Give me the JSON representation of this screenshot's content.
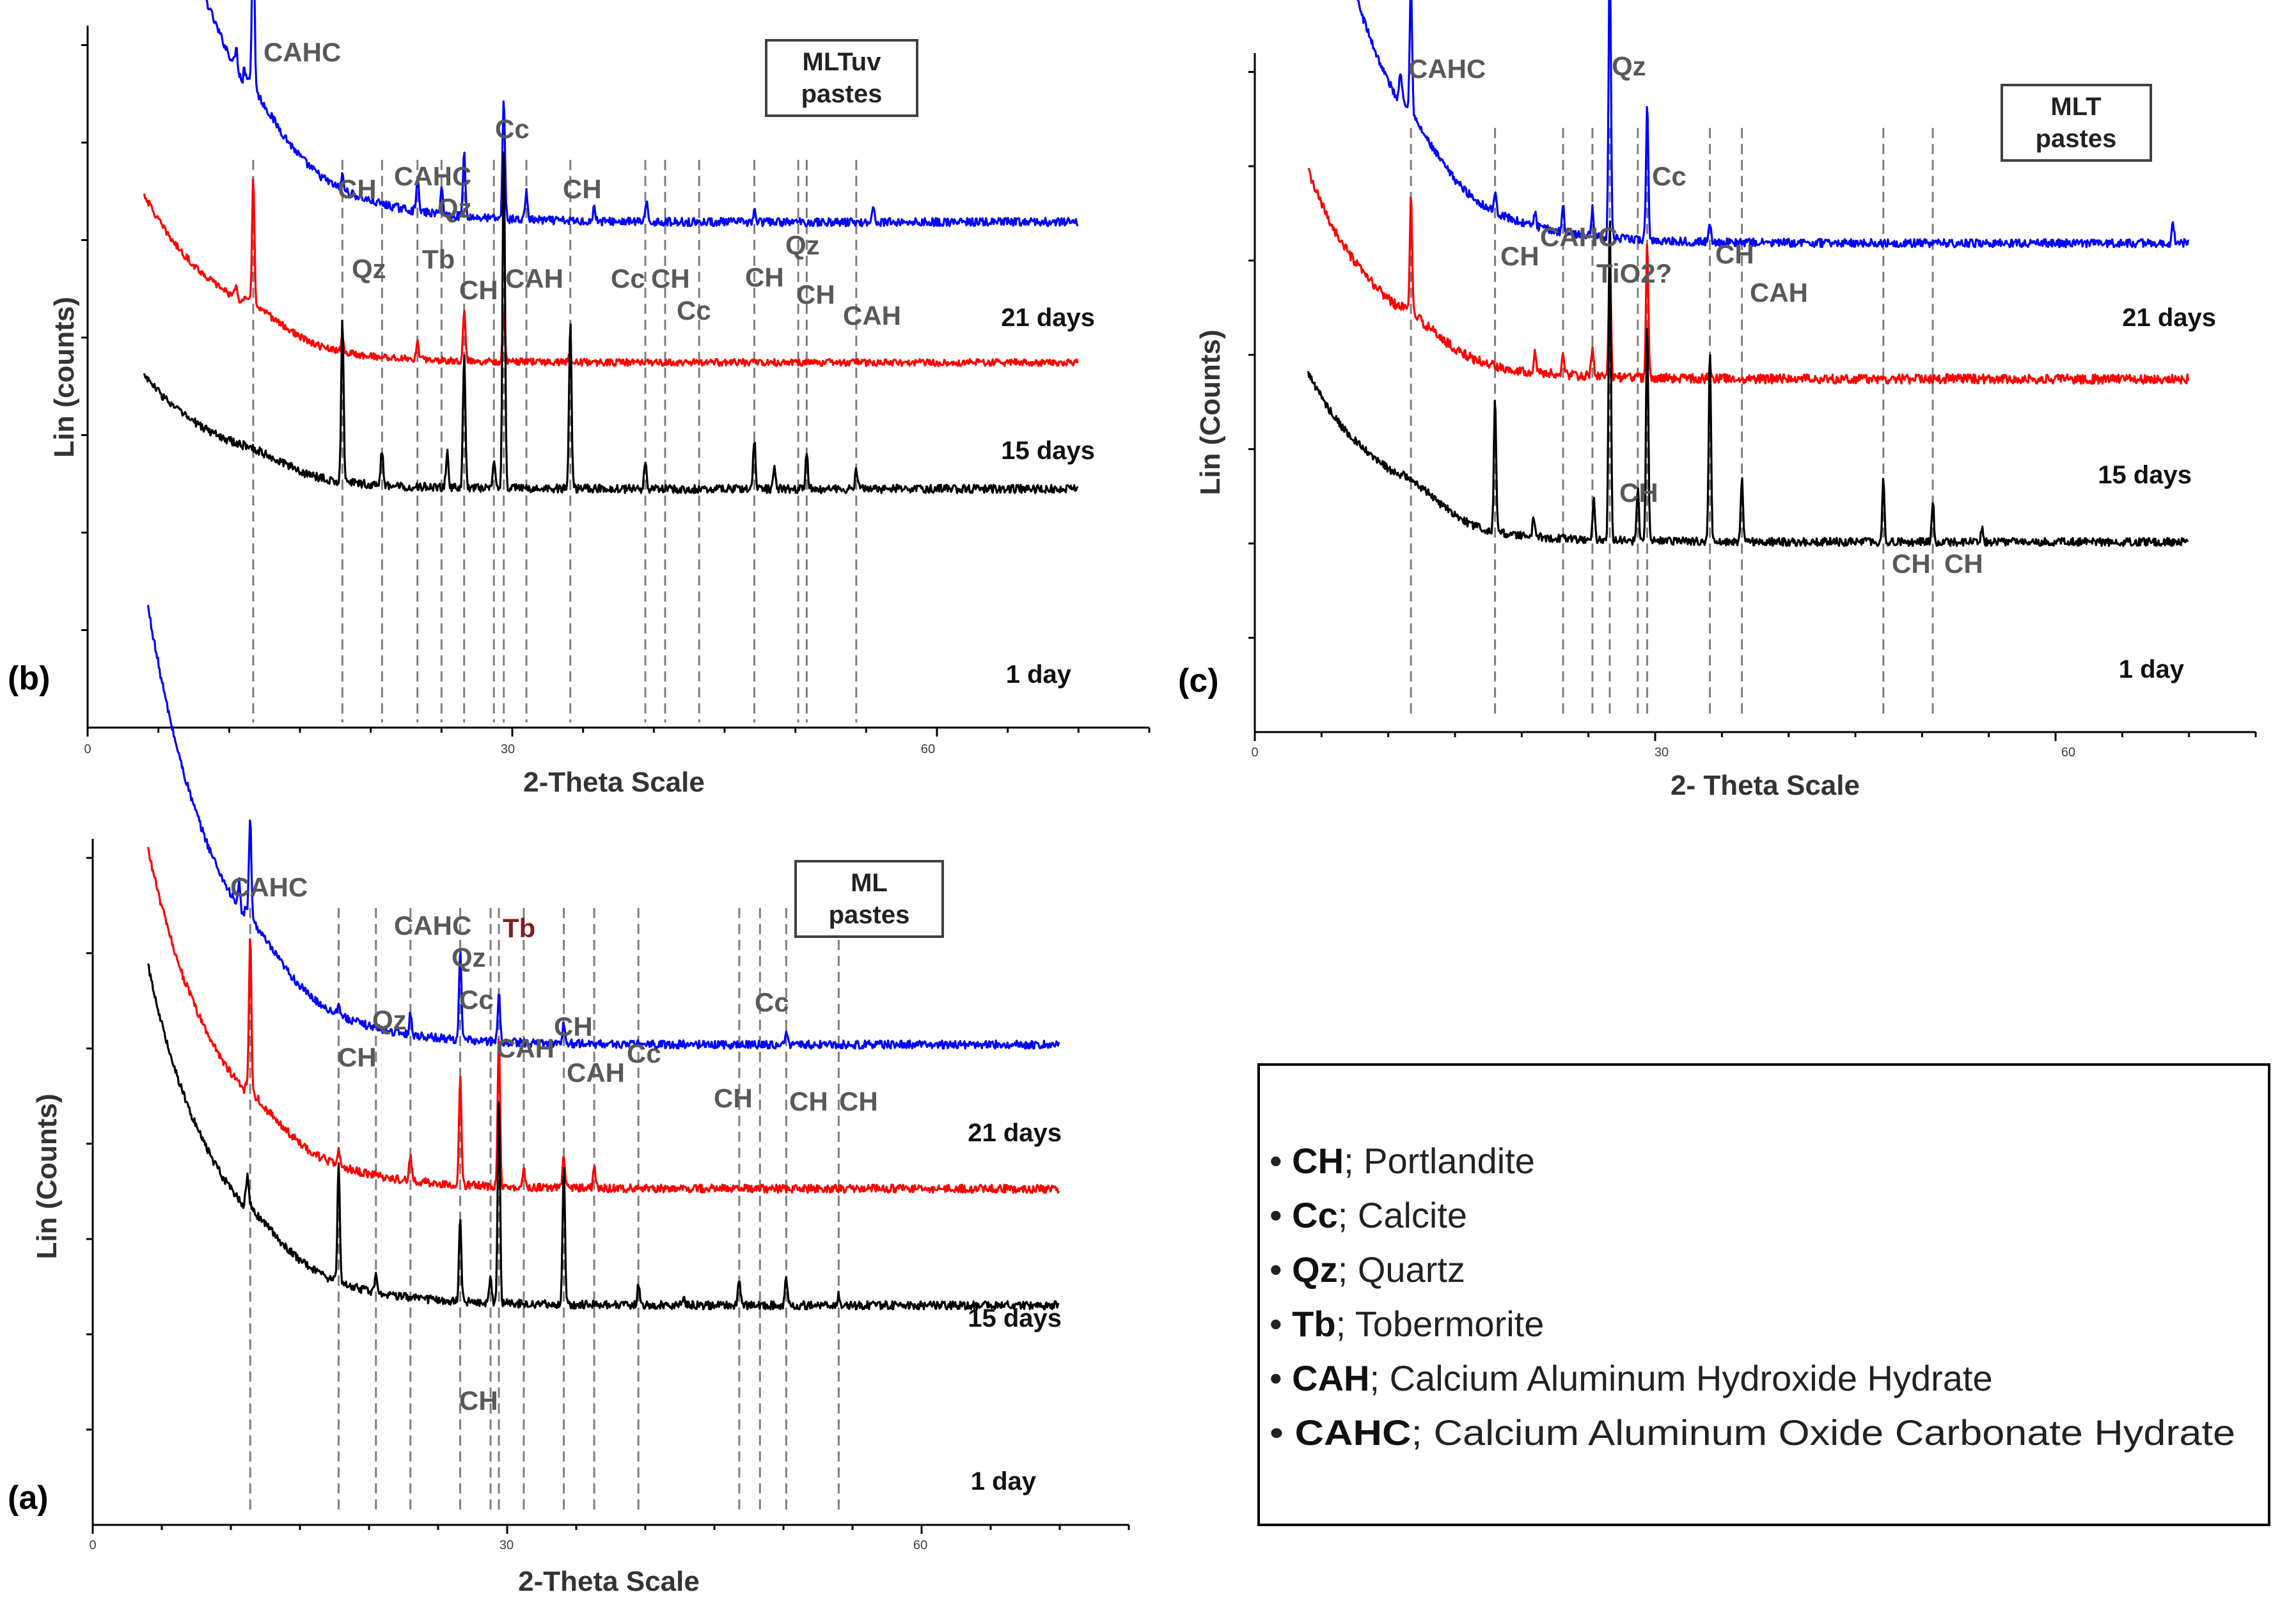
{
  "chart_data": [
    {
      "id": "b",
      "panel_label": "(b)",
      "type": "line",
      "title_box": [
        "MLTuv",
        "pastes"
      ],
      "xlabel": "2-Theta Scale",
      "ylabel": "Lin (counts)",
      "xlim": [
        0,
        75
      ],
      "xticks": [
        "0",
        "30",
        "60"
      ],
      "series": [
        {
          "name": "21 days",
          "color": "#0000ff",
          "start": 4,
          "end": 70,
          "base": 0.72,
          "hump": 0.04,
          "tail": 0.1,
          "noise": 0.006,
          "peaks": [
            [
              10.5,
              0.03
            ],
            [
              11.7,
              0.26
            ],
            [
              18,
              0.02
            ],
            [
              23.3,
              0.05
            ],
            [
              25,
              0.04
            ],
            [
              26.6,
              0.09
            ],
            [
              29.4,
              0.17
            ],
            [
              31,
              0.04
            ],
            [
              35.8,
              0.02
            ],
            [
              39.5,
              0.025
            ],
            [
              47.1,
              0.015
            ],
            [
              55.5,
              0.02
            ]
          ]
        },
        {
          "name": "15 days",
          "color": "#ff0000",
          "start": 4,
          "end": 70,
          "base": 0.52,
          "hump": 0.04,
          "tail": 0.03,
          "noise": 0.005,
          "peaks": [
            [
              10.5,
              0.02
            ],
            [
              11.7,
              0.18
            ],
            [
              18,
              0.02
            ],
            [
              23.3,
              0.025
            ],
            [
              26.6,
              0.07
            ],
            [
              29.4,
              0.07
            ],
            [
              34,
              0.012
            ]
          ]
        },
        {
          "name": "1 day",
          "color": "#000000",
          "start": 4,
          "end": 70,
          "base": 0.34,
          "hump": 0.03,
          "tail": 0.02,
          "noise": 0.006,
          "peaks": [
            [
              18,
              0.23
            ],
            [
              20.8,
              0.05
            ],
            [
              25.4,
              0.05
            ],
            [
              26.6,
              0.19
            ],
            [
              28.7,
              0.04
            ],
            [
              29.4,
              0.49
            ],
            [
              34.1,
              0.24
            ],
            [
              39.4,
              0.04
            ],
            [
              47.1,
              0.07
            ],
            [
              48.5,
              0.03
            ],
            [
              50.8,
              0.05
            ],
            [
              54.3,
              0.03
            ]
          ]
        }
      ],
      "day_labels": [
        "21 days",
        "15 days",
        "1 day"
      ],
      "annotations": [
        {
          "text": "CAHC",
          "x": 11.7
        },
        {
          "text": "CH",
          "x": 18
        },
        {
          "text": "Qz",
          "x": 20.8
        },
        {
          "text": "CAHC",
          "x": 23.3
        },
        {
          "text": "Tb",
          "x": 25
        },
        {
          "text": "Qz",
          "x": 26.6
        },
        {
          "text": "CH",
          "x": 28.7
        },
        {
          "text": "Cc",
          "x": 29.4
        },
        {
          "text": "CAH",
          "x": 31
        },
        {
          "text": "CH",
          "x": 34.1
        },
        {
          "text": "Cc",
          "x": 39.4
        },
        {
          "text": "CH",
          "x": 40.8
        },
        {
          "text": "Cc",
          "x": 43.2
        },
        {
          "text": "CH",
          "x": 47.1
        },
        {
          "text": "Qz",
          "x": 50.2
        },
        {
          "text": "CH",
          "x": 50.8
        },
        {
          "text": "CAH",
          "x": 54.3
        }
      ]
    },
    {
      "id": "c",
      "panel_label": "(c)",
      "type": "line",
      "title_box": [
        "MLT",
        "pastes"
      ],
      "xlabel": "2- Theta Scale",
      "ylabel": "Lin (Counts)",
      "xlim": [
        0,
        75
      ],
      "xticks": [
        "0",
        "30",
        "60"
      ],
      "series": [
        {
          "name": "21 days",
          "color": "#0000ff",
          "start": 4,
          "end": 70,
          "base": 0.72,
          "hump": 0.04,
          "tail": 0.1,
          "noise": 0.006,
          "peaks": [
            [
              10.9,
              0.05
            ],
            [
              11.7,
              0.2
            ],
            [
              18,
              0.03
            ],
            [
              21,
              0.02
            ],
            [
              23.1,
              0.04
            ],
            [
              25.3,
              0.04
            ],
            [
              26.6,
              0.43
            ],
            [
              29.4,
              0.2
            ],
            [
              34.1,
              0.03
            ],
            [
              68.8,
              0.03
            ]
          ]
        },
        {
          "name": "15 days",
          "color": "#ff0000",
          "start": 4,
          "end": 70,
          "base": 0.52,
          "hump": 0.04,
          "tail": 0.04,
          "noise": 0.007,
          "peaks": [
            [
              11.7,
              0.17
            ],
            [
              21,
              0.03
            ],
            [
              23.1,
              0.03
            ],
            [
              25.3,
              0.04
            ],
            [
              26.6,
              0.19
            ],
            [
              29.4,
              0.2
            ],
            [
              34.1,
              0.02
            ]
          ]
        },
        {
          "name": "1 day",
          "color": "#000000",
          "start": 4,
          "end": 70,
          "base": 0.28,
          "hump": 0.05,
          "tail": 0.03,
          "noise": 0.006,
          "peaks": [
            [
              18,
              0.2
            ],
            [
              20.9,
              0.03
            ],
            [
              25.4,
              0.06
            ],
            [
              26.6,
              0.48
            ],
            [
              28.7,
              0.08
            ],
            [
              29.4,
              0.32
            ],
            [
              34.1,
              0.28
            ],
            [
              36.5,
              0.09
            ],
            [
              47.1,
              0.09
            ],
            [
              50.8,
              0.06
            ],
            [
              54.5,
              0.02
            ]
          ]
        }
      ],
      "day_labels": [
        "21 days",
        "15 days",
        "1 day"
      ],
      "annotations": [
        {
          "text": "CAHC",
          "x": 11.7
        },
        {
          "text": "CH",
          "x": 18
        },
        {
          "text": "CAHC",
          "x": 23.1
        },
        {
          "text": "TiO2?",
          "x": 25.3
        },
        {
          "text": "Qz",
          "x": 26.6
        },
        {
          "text": "CH",
          "x": 28.7
        },
        {
          "text": "Cc",
          "x": 29.4
        },
        {
          "text": "CH",
          "x": 34.1
        },
        {
          "text": "CAH",
          "x": 36.5
        },
        {
          "text": "CH",
          "x": 47.1
        },
        {
          "text": "CH",
          "x": 50.8
        }
      ]
    },
    {
      "id": "a",
      "panel_label": "(a)",
      "type": "line",
      "title_box": [
        "ML",
        "pastes"
      ],
      "xlabel": "2-Theta Scale",
      "ylabel": "Lin (Counts)",
      "xlim": [
        0,
        75
      ],
      "xticks": [
        "0",
        "30",
        "60"
      ],
      "series": [
        {
          "name": "21 days",
          "color": "#0000ff",
          "start": 4,
          "end": 70,
          "base": 0.7,
          "hump": 0.04,
          "tail": 0.09,
          "noise": 0.006,
          "peaks": [
            [
              10.6,
              0.04
            ],
            [
              11.4,
              0.14
            ],
            [
              17.8,
              0.02
            ],
            [
              23,
              0.03
            ],
            [
              26.6,
              0.13
            ],
            [
              29.4,
              0.07
            ],
            [
              34.1,
              0.03
            ],
            [
              50.2,
              0.02
            ]
          ]
        },
        {
          "name": "15 days",
          "color": "#ff0000",
          "start": 4,
          "end": 70,
          "base": 0.49,
          "hump": 0.03,
          "tail": 0.07,
          "noise": 0.006,
          "peaks": [
            [
              11.4,
              0.23
            ],
            [
              17.8,
              0.02
            ],
            [
              23,
              0.04
            ],
            [
              26.6,
              0.16
            ],
            [
              29.4,
              0.22
            ],
            [
              31.2,
              0.03
            ],
            [
              34.1,
              0.05
            ],
            [
              36.3,
              0.03
            ]
          ]
        },
        {
          "name": "1 day",
          "color": "#000000",
          "start": 4,
          "end": 70,
          "base": 0.32,
          "hump": 0.03,
          "tail": 0.07,
          "noise": 0.006,
          "peaks": [
            [
              11.2,
              0.04
            ],
            [
              17.8,
              0.17
            ],
            [
              20.5,
              0.03
            ],
            [
              26.6,
              0.12
            ],
            [
              28.8,
              0.04
            ],
            [
              29.4,
              0.3
            ],
            [
              34.1,
              0.2
            ],
            [
              39.5,
              0.03
            ],
            [
              42.8,
              0.01
            ],
            [
              46.8,
              0.04
            ],
            [
              50.2,
              0.04
            ],
            [
              54,
              0.015
            ]
          ]
        }
      ],
      "day_labels": [
        "21 days",
        "15 days",
        "1 day"
      ],
      "annotations": [
        {
          "text": "CAHC",
          "x": 11.4
        },
        {
          "text": "CH",
          "x": 17.8
        },
        {
          "text": "Qz",
          "x": 20.5
        },
        {
          "text": "CAHC",
          "x": 23
        },
        {
          "text": "Qz",
          "x": 26.6
        },
        {
          "text": "Cc",
          "x": 29.4
        },
        {
          "text": "Tb",
          "x": 29.4
        },
        {
          "text": "CAH",
          "x": 31.2
        },
        {
          "text": "CH",
          "x": 34.1
        },
        {
          "text": "CAH",
          "x": 36.3
        },
        {
          "text": "Cc",
          "x": 39.5
        },
        {
          "text": "CH",
          "x": 46.8
        },
        {
          "text": "Cc",
          "x": 48.3
        },
        {
          "text": "CH",
          "x": 50.2
        },
        {
          "text": "CH",
          "x": 54
        },
        {
          "text": "CH",
          "x": 28.8
        }
      ]
    }
  ],
  "legend": {
    "items": [
      {
        "abbr": "CH",
        "text": "; Portlandite"
      },
      {
        "abbr": "Cc",
        "text": "; Calcite"
      },
      {
        "abbr": "Qz",
        "text": "; Quartz"
      },
      {
        "abbr": "Tb",
        "text": "; Tobermorite"
      },
      {
        "abbr": "CAH",
        "text": "; Calcium Aluminum Hydroxide Hydrate"
      },
      {
        "abbr": "CAHC",
        "text": "; Calcium Aluminum Oxide Carbonate Hydrate"
      }
    ]
  }
}
